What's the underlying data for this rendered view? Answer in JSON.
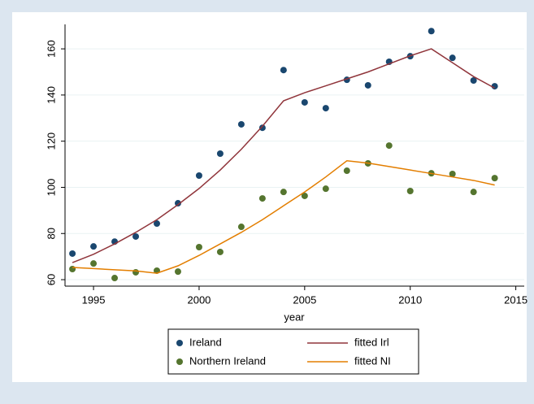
{
  "chart_data": {
    "type": "scatter",
    "x_label": "year",
    "x": [
      1994,
      1995,
      1996,
      1997,
      1998,
      1999,
      2000,
      2001,
      2002,
      2003,
      2004,
      2005,
      2006,
      2007,
      2008,
      2009,
      2010,
      2011,
      2012,
      2013,
      2014
    ],
    "series": [
      {
        "name": "Ireland",
        "kind": "scatter",
        "color": "#1a476f",
        "values": [
          71.3,
          74.4,
          76.5,
          78.7,
          84.3,
          93.1,
          105.1,
          114.6,
          127.3,
          125.8,
          150.8,
          136.8,
          134.3,
          146.6,
          144.2,
          154.4,
          156.8,
          167.7,
          156.1,
          146.3,
          143.8
        ]
      },
      {
        "name": "fitted Irl",
        "kind": "line",
        "color": "#90353b",
        "values": [
          67.4,
          71,
          75.5,
          80.5,
          86,
          92.5,
          99.5,
          107.5,
          116.5,
          126.5,
          137.5,
          141,
          144,
          147,
          150,
          153.5,
          157,
          160,
          154,
          148,
          143
        ]
      },
      {
        "name": "Northern Ireland",
        "kind": "scatter",
        "color": "#55752f",
        "values": [
          64.6,
          67.0,
          60.7,
          63.2,
          63.9,
          63.5,
          74.1,
          72.0,
          82.9,
          95.2,
          98.0,
          96.3,
          99.4,
          107.2,
          110.4,
          118.1,
          98.4,
          106.1,
          105.8,
          98.0,
          104.0
        ]
      },
      {
        "name": "fitted NI",
        "kind": "line",
        "color": "#e37e00",
        "values": [
          65.3,
          64.8,
          64.3,
          63.8,
          62.8,
          66,
          70.5,
          75.5,
          80.5,
          86,
          92,
          98,
          104.5,
          111.5,
          110.5,
          109,
          107.5,
          106,
          104.5,
          103,
          101
        ]
      }
    ],
    "xlim": [
      1993.65,
      2015.4
    ],
    "xticks": [
      1995,
      2000,
      2005,
      2010,
      2015
    ],
    "ylim": [
      57.2,
      170.6
    ],
    "yticks": [
      60,
      80,
      100,
      120,
      140,
      160
    ],
    "grid": true,
    "legend_position": "bottom"
  }
}
